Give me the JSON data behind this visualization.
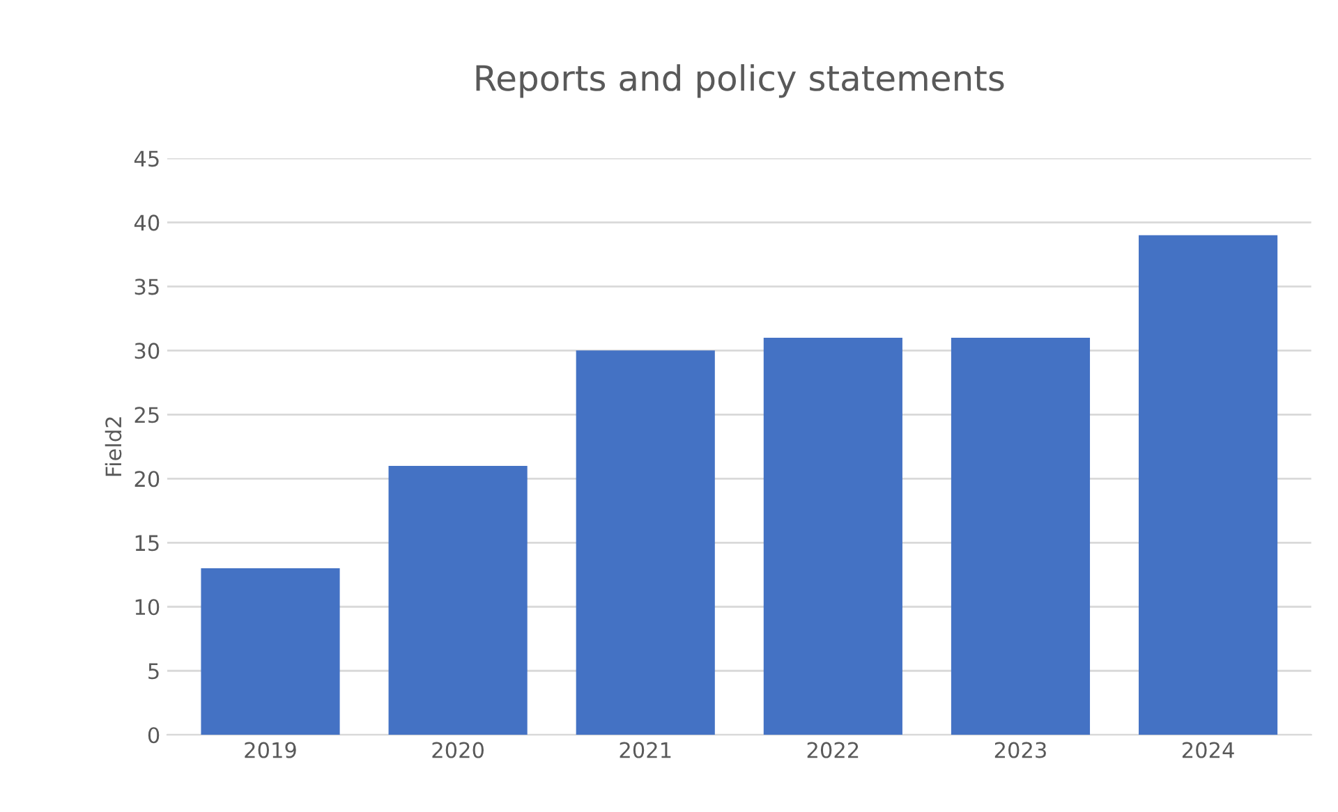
{
  "chart_data": {
    "type": "bar",
    "title": "Reports and policy statements",
    "ylabel": "Field2",
    "categories": [
      "2019",
      "2020",
      "2021",
      "2022",
      "2023",
      "2024"
    ],
    "values": [
      13,
      21,
      30,
      31,
      31,
      39
    ],
    "color": "#4472c4",
    "ylim": [
      0,
      45
    ],
    "yticks": [
      0,
      5,
      10,
      15,
      20,
      25,
      30,
      35,
      40,
      45
    ],
    "grid": "y"
  }
}
